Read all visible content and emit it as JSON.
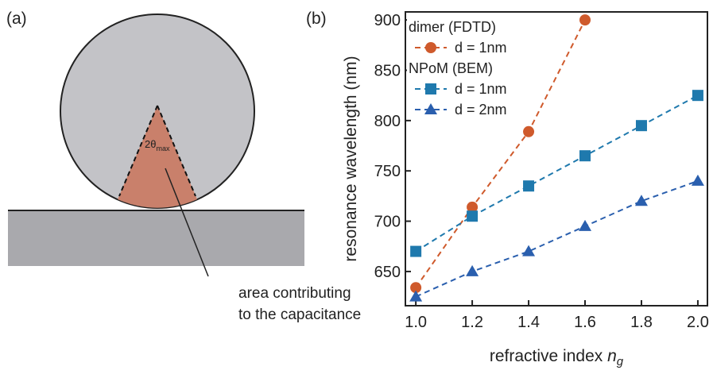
{
  "diagram": {
    "panel_label": "(a)",
    "angle_label": {
      "text": "2θ",
      "subscript": "max"
    },
    "annotation": [
      "area contributing",
      "to the capacitance"
    ]
  },
  "chart_data": {
    "type": "line",
    "panel_label": "(b)",
    "xlabel": {
      "text": "refractive index ",
      "symbol": "n",
      "subscript": "g"
    },
    "ylabel": "resonance wavelength (nm)",
    "xlim": [
      0.963,
      2.034
    ],
    "ylim": [
      616,
      908
    ],
    "xticks": [
      {
        "value": 1.0,
        "label": "1.0"
      },
      {
        "value": 1.2,
        "label": "1.2"
      },
      {
        "value": 1.4,
        "label": "1.4"
      },
      {
        "value": 1.6,
        "label": "1.6"
      },
      {
        "value": 1.8,
        "label": "1.8"
      },
      {
        "value": 2.0,
        "label": "2.0"
      }
    ],
    "yticks": [
      650,
      700,
      750,
      800,
      850,
      900
    ],
    "legend_titles": [
      "dimer (FDTD)",
      "NPoM (BEM)"
    ],
    "series": [
      {
        "name": "d = 1nm",
        "color": "#cf5a2c",
        "marker": "circle",
        "x": [
          1.0,
          1.2,
          1.4,
          1.6
        ],
        "values": [
          634,
          714,
          789,
          900
        ]
      },
      {
        "name": "d = 1nm",
        "color": "#1f79ad",
        "marker": "square",
        "x": [
          1.0,
          1.2,
          1.4,
          1.6,
          1.8,
          2.0
        ],
        "values": [
          670,
          705,
          735,
          765,
          795,
          825
        ]
      },
      {
        "name": "d = 2nm",
        "color": "#2a5fae",
        "marker": "triangle",
        "x": [
          1.0,
          1.2,
          1.4,
          1.6,
          1.8,
          2.0
        ],
        "values": [
          625,
          650,
          670,
          695,
          720,
          740
        ]
      }
    ]
  }
}
